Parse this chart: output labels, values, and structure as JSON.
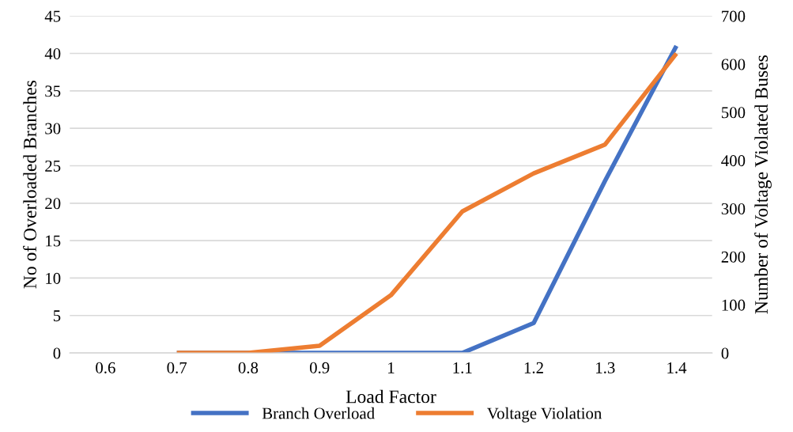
{
  "chart_data": {
    "type": "line",
    "xlabel": "Load Factor",
    "ylabel": "No of Overloaded Branches",
    "y2label": "Number of Voltage Violated Buses",
    "categories": [
      "0.6",
      "0.7",
      "0.8",
      "0.9",
      "1",
      "1.1",
      "1.2",
      "1.3",
      "1.4"
    ],
    "series": [
      {
        "name": "Branch Overload",
        "color": "#4472c4",
        "values": [
          null,
          0,
          0,
          0,
          0,
          0,
          4,
          23,
          41
        ]
      },
      {
        "name": "Voltage Violation",
        "color": "#ed7d31",
        "axis": "y2",
        "values": [
          null,
          0,
          0,
          15,
          120,
          294,
          373,
          433,
          622
        ]
      }
    ],
    "ylim": [
      0,
      45
    ],
    "yticks": [
      0,
      5,
      10,
      15,
      20,
      25,
      30,
      35,
      40,
      45
    ],
    "y2lim": [
      0,
      700
    ],
    "y2ticks": [
      0,
      100,
      200,
      300,
      400,
      500,
      600,
      700
    ],
    "grid": "y",
    "legend": "bottom",
    "marker": "none",
    "line_style": "solid"
  }
}
